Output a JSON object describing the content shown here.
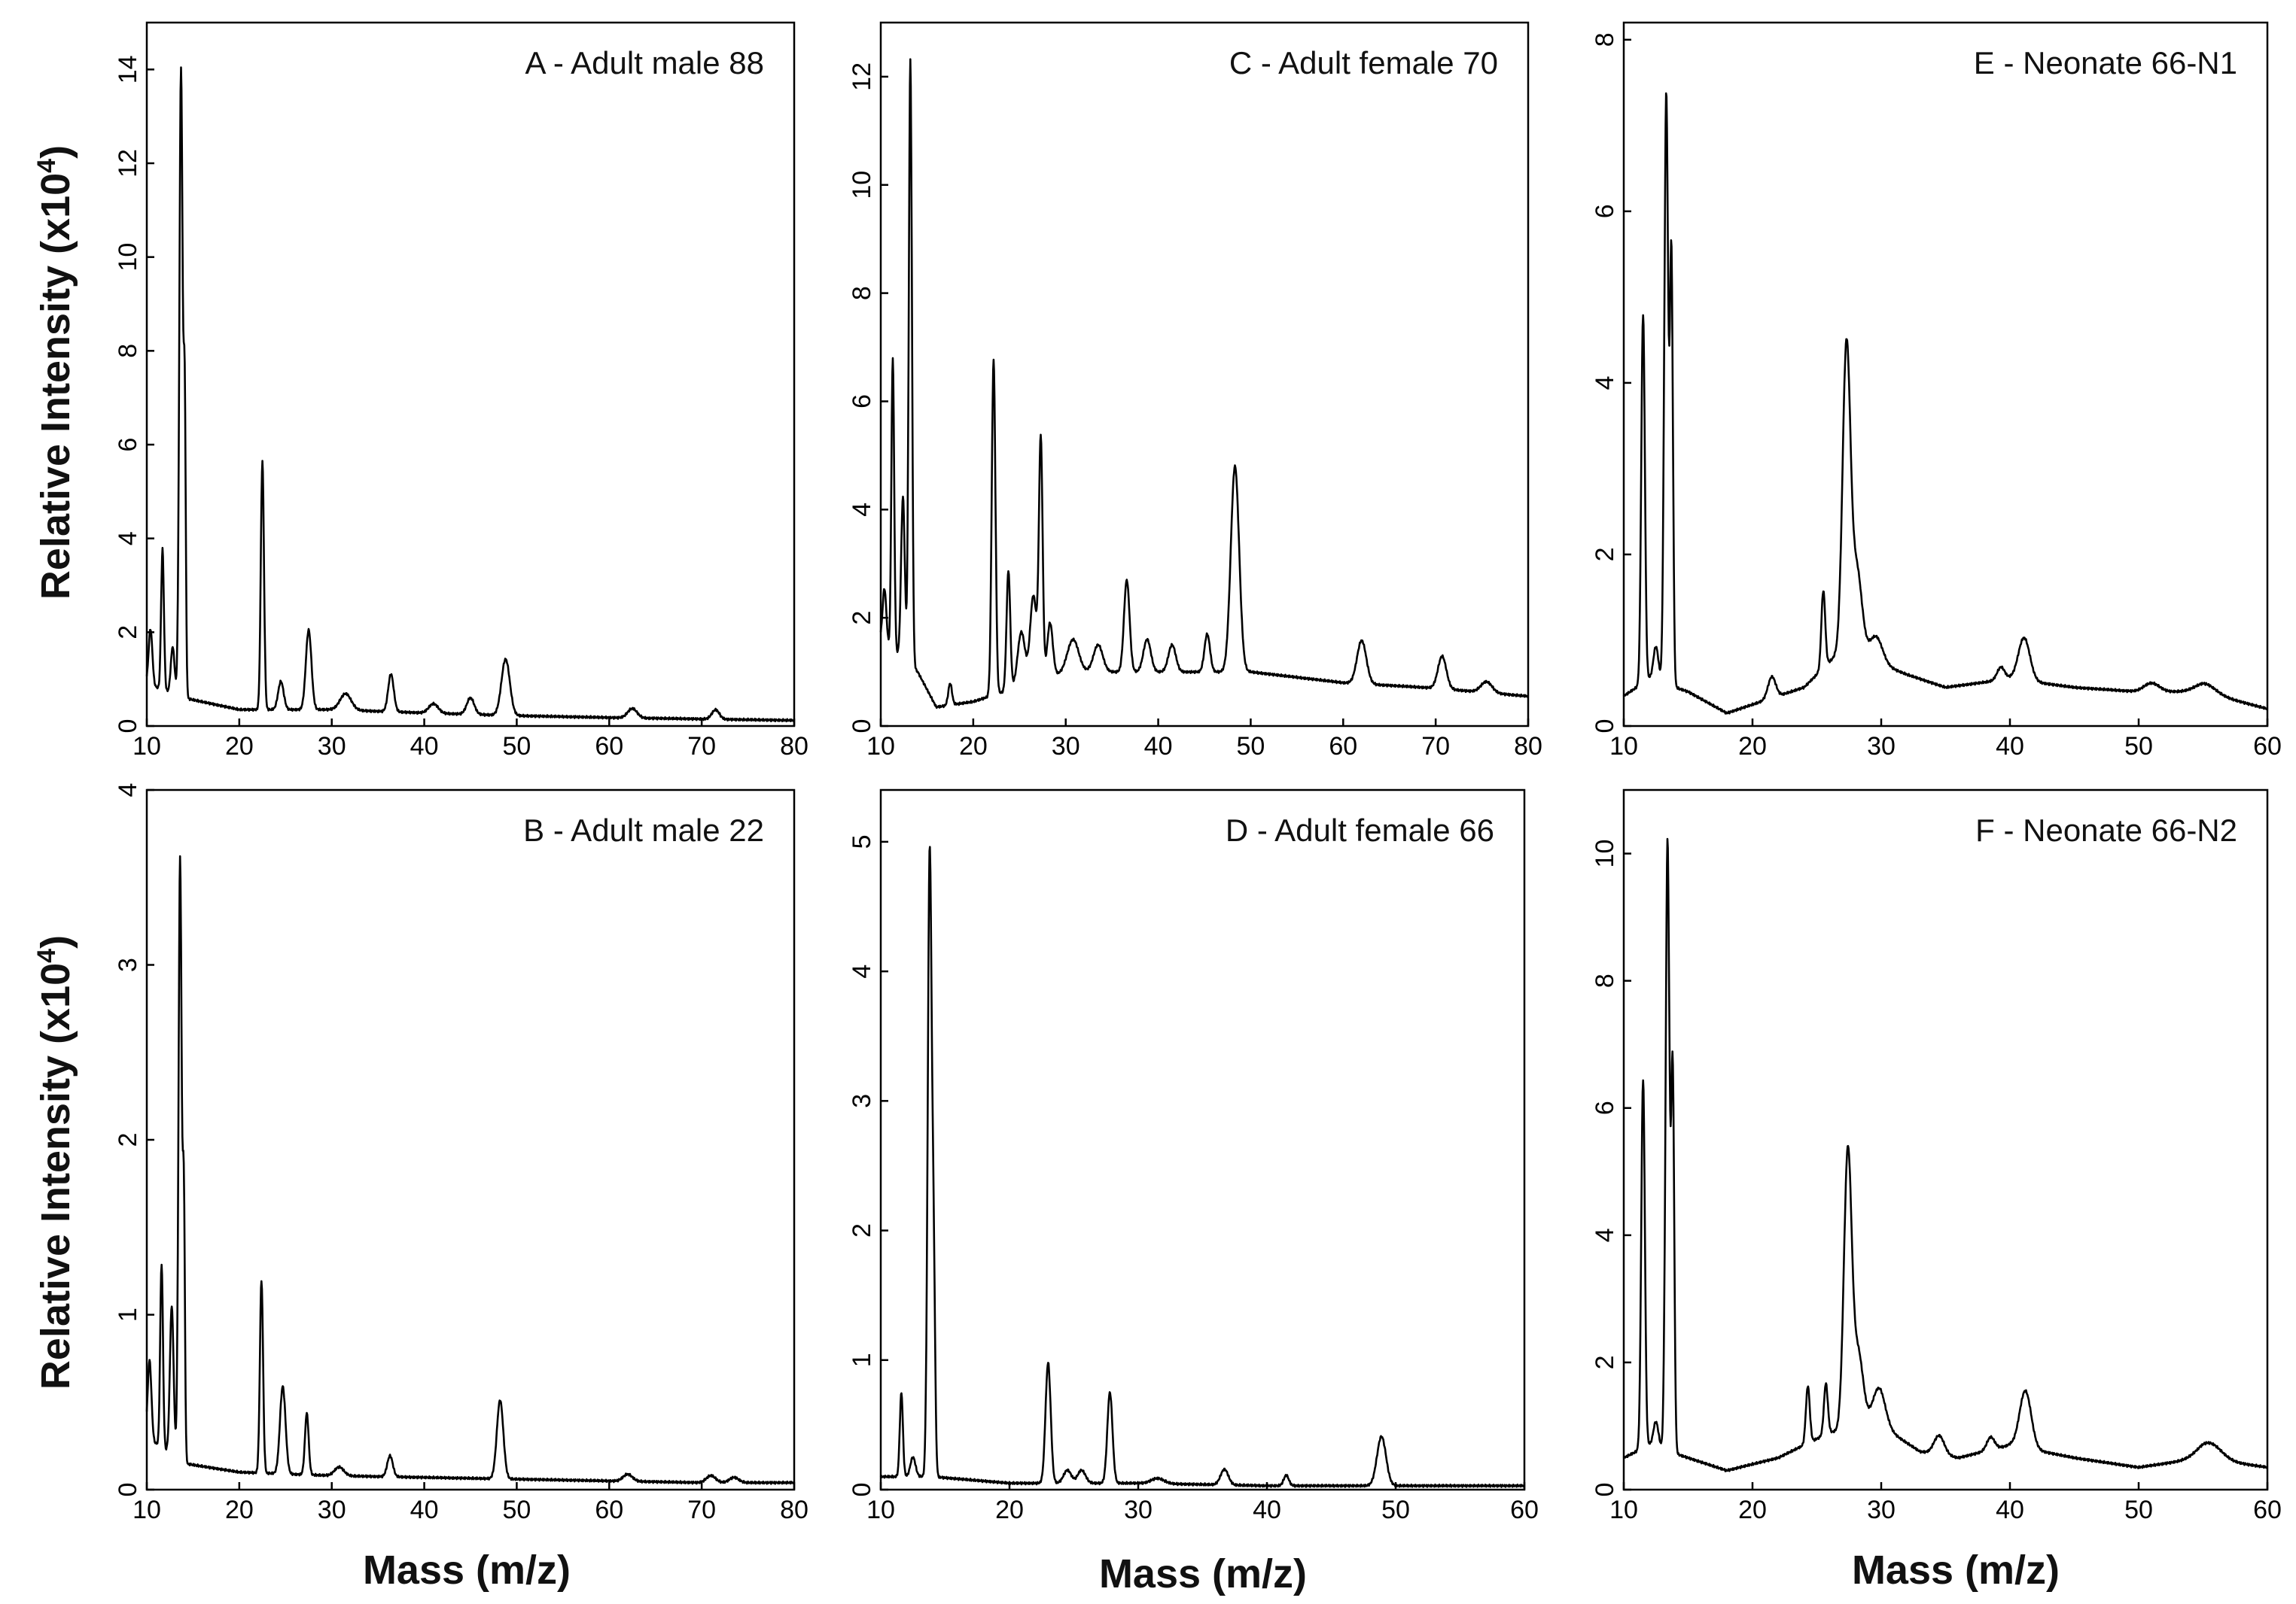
{
  "figure": {
    "xlabel": "Mass (m/z)",
    "ylabel": "Relative Intensity (x10",
    "ylabel_sup": "4",
    "ylabel_close": ")"
  },
  "chart_data": [
    {
      "id": "A",
      "type": "line",
      "title": "A - Adult male 88",
      "xlim": [
        10,
        80
      ],
      "ylim": [
        0,
        15
      ],
      "xticks": [
        10,
        20,
        30,
        40,
        50,
        60,
        70,
        80
      ],
      "yticks": [
        0,
        2,
        4,
        6,
        8,
        10,
        12,
        14
      ],
      "baseline": [
        [
          10,
          0.9
        ],
        [
          14,
          0.6
        ],
        [
          20,
          0.35
        ],
        [
          30,
          0.35
        ],
        [
          40,
          0.28
        ],
        [
          50,
          0.22
        ],
        [
          60,
          0.18
        ],
        [
          70,
          0.15
        ],
        [
          80,
          0.12
        ]
      ],
      "peaks": [
        [
          10.4,
          1.2,
          0.2
        ],
        [
          11.7,
          3.0,
          0.15
        ],
        [
          12.8,
          1.0,
          0.2
        ],
        [
          13.7,
          13.4,
          0.18
        ],
        [
          14.1,
          6.0,
          0.12
        ],
        [
          22.5,
          5.3,
          0.17
        ],
        [
          24.5,
          0.6,
          0.3
        ],
        [
          27.5,
          1.7,
          0.3
        ],
        [
          31.5,
          0.35,
          0.6
        ],
        [
          36.4,
          0.8,
          0.3
        ],
        [
          41,
          0.2,
          0.5
        ],
        [
          45,
          0.35,
          0.4
        ],
        [
          48.8,
          1.2,
          0.45
        ],
        [
          62.5,
          0.2,
          0.5
        ],
        [
          71.5,
          0.2,
          0.4
        ]
      ]
    },
    {
      "id": "C",
      "type": "line",
      "title": "C - Adult female 70",
      "xlim": [
        10,
        80
      ],
      "ylim": [
        0,
        13
      ],
      "xticks": [
        10,
        20,
        30,
        40,
        50,
        60,
        70,
        80
      ],
      "yticks": [
        0,
        2,
        4,
        6,
        8,
        10,
        12
      ],
      "baseline": [
        [
          10,
          1.6
        ],
        [
          14,
          1.0
        ],
        [
          16,
          0.35
        ],
        [
          20,
          0.45
        ],
        [
          30,
          1.0
        ],
        [
          40,
          1.0
        ],
        [
          50,
          1.0
        ],
        [
          60,
          0.8
        ],
        [
          70,
          0.7
        ],
        [
          80,
          0.55
        ]
      ],
      "peaks": [
        [
          10.4,
          1.0,
          0.2
        ],
        [
          11.3,
          5.4,
          0.15
        ],
        [
          12.4,
          3.0,
          0.2
        ],
        [
          13.2,
          11.2,
          0.17
        ],
        [
          17.5,
          0.4,
          0.2
        ],
        [
          22.2,
          6.2,
          0.2
        ],
        [
          23.8,
          2.2,
          0.2
        ],
        [
          25.2,
          1.0,
          0.4
        ],
        [
          26.5,
          1.6,
          0.35
        ],
        [
          27.3,
          4.4,
          0.2
        ],
        [
          28.3,
          1.0,
          0.3
        ],
        [
          30.8,
          0.6,
          0.6
        ],
        [
          33.5,
          0.5,
          0.5
        ],
        [
          36.6,
          1.7,
          0.3
        ],
        [
          38.8,
          0.6,
          0.4
        ],
        [
          41.5,
          0.5,
          0.4
        ],
        [
          45.3,
          0.7,
          0.3
        ],
        [
          48.3,
          3.8,
          0.45
        ],
        [
          62.0,
          0.8,
          0.5
        ],
        [
          70.7,
          0.6,
          0.45
        ],
        [
          75.5,
          0.2,
          0.6
        ]
      ]
    },
    {
      "id": "E",
      "type": "line",
      "title": "E - Neonate 66-N1",
      "xlim": [
        10,
        60
      ],
      "ylim": [
        0,
        8.2
      ],
      "xticks": [
        10,
        20,
        30,
        40,
        50,
        60
      ],
      "yticks": [
        0,
        2,
        4,
        6,
        8
      ],
      "baseline": [
        [
          10,
          0.35
        ],
        [
          12,
          0.55
        ],
        [
          15,
          0.4
        ],
        [
          18,
          0.15
        ],
        [
          20,
          0.25
        ],
        [
          24,
          0.45
        ],
        [
          27,
          0.9
        ],
        [
          32,
          0.6
        ],
        [
          35,
          0.45
        ],
        [
          40,
          0.55
        ],
        [
          45,
          0.45
        ],
        [
          50,
          0.4
        ],
        [
          55,
          0.4
        ],
        [
          60,
          0.2
        ]
      ],
      "peaks": [
        [
          11.5,
          4.3,
          0.14
        ],
        [
          12.5,
          0.4,
          0.2
        ],
        [
          13.3,
          6.9,
          0.15
        ],
        [
          13.7,
          5.0,
          0.12
        ],
        [
          21.5,
          0.25,
          0.3
        ],
        [
          25.5,
          0.9,
          0.15
        ],
        [
          27.3,
          3.5,
          0.3
        ],
        [
          28.1,
          1.0,
          0.4
        ],
        [
          29.6,
          0.3,
          0.5
        ],
        [
          39.3,
          0.15,
          0.3
        ],
        [
          41.1,
          0.5,
          0.45
        ],
        [
          51,
          0.1,
          0.6
        ],
        [
          55.2,
          0.1,
          0.8
        ]
      ]
    },
    {
      "id": "B",
      "type": "line",
      "title": "B - Adult male 22",
      "xlim": [
        10,
        80
      ],
      "ylim": [
        0,
        4
      ],
      "xticks": [
        10,
        20,
        30,
        40,
        50,
        60,
        70,
        80
      ],
      "yticks": [
        0,
        1,
        2,
        3,
        4
      ],
      "baseline": [
        [
          10,
          0.3
        ],
        [
          14,
          0.15
        ],
        [
          20,
          0.1
        ],
        [
          30,
          0.08
        ],
        [
          40,
          0.07
        ],
        [
          50,
          0.06
        ],
        [
          60,
          0.05
        ],
        [
          70,
          0.04
        ],
        [
          80,
          0.04
        ]
      ],
      "peaks": [
        [
          10.3,
          0.45,
          0.2
        ],
        [
          11.6,
          1.05,
          0.15
        ],
        [
          12.7,
          0.85,
          0.2
        ],
        [
          13.6,
          3.45,
          0.17
        ],
        [
          14.0,
          1.5,
          0.12
        ],
        [
          22.4,
          1.1,
          0.17
        ],
        [
          24.7,
          0.5,
          0.3
        ],
        [
          27.3,
          0.35,
          0.2
        ],
        [
          30.8,
          0.05,
          0.5
        ],
        [
          36.3,
          0.12,
          0.3
        ],
        [
          48.2,
          0.45,
          0.35
        ],
        [
          62,
          0.04,
          0.5
        ],
        [
          71,
          0.04,
          0.5
        ],
        [
          73.5,
          0.03,
          0.5
        ]
      ]
    },
    {
      "id": "D",
      "type": "line",
      "title": "D - Adult female 66",
      "xlim": [
        10,
        60
      ],
      "ylim": [
        0,
        5.4
      ],
      "xticks": [
        10,
        20,
        30,
        40,
        50,
        60
      ],
      "yticks": [
        0,
        1,
        2,
        3,
        4,
        5
      ],
      "baseline": [
        [
          10,
          0.1
        ],
        [
          14,
          0.1
        ],
        [
          20,
          0.05
        ],
        [
          30,
          0.05
        ],
        [
          40,
          0.03
        ],
        [
          50,
          0.03
        ],
        [
          60,
          0.03
        ]
      ],
      "peaks": [
        [
          11.6,
          0.65,
          0.12
        ],
        [
          12.5,
          0.15,
          0.2
        ],
        [
          13.8,
          4.8,
          0.15
        ],
        [
          14.1,
          1.6,
          0.12
        ],
        [
          23.0,
          0.93,
          0.2
        ],
        [
          24.5,
          0.1,
          0.3
        ],
        [
          25.6,
          0.1,
          0.3
        ],
        [
          27.8,
          0.7,
          0.2
        ],
        [
          31.5,
          0.04,
          0.5
        ],
        [
          36.7,
          0.12,
          0.3
        ],
        [
          41.5,
          0.08,
          0.2
        ],
        [
          48.9,
          0.38,
          0.35
        ]
      ]
    },
    {
      "id": "F",
      "type": "line",
      "title": "F - Neonate 66-N2",
      "xlim": [
        10,
        60
      ],
      "ylim": [
        0,
        11
      ],
      "xticks": [
        10,
        20,
        30,
        40,
        50,
        60
      ],
      "yticks": [
        0,
        2,
        4,
        6,
        8,
        10
      ],
      "baseline": [
        [
          10,
          0.5
        ],
        [
          12,
          0.7
        ],
        [
          15,
          0.5
        ],
        [
          18,
          0.3
        ],
        [
          22,
          0.5
        ],
        [
          26,
          0.9
        ],
        [
          30,
          1.0
        ],
        [
          33,
          0.6
        ],
        [
          36,
          0.5
        ],
        [
          40,
          0.7
        ],
        [
          45,
          0.5
        ],
        [
          50,
          0.35
        ],
        [
          55,
          0.5
        ],
        [
          60,
          0.35
        ]
      ],
      "peaks": [
        [
          11.5,
          5.8,
          0.14
        ],
        [
          12.5,
          0.4,
          0.2
        ],
        [
          13.4,
          9.6,
          0.15
        ],
        [
          13.8,
          6.0,
          0.12
        ],
        [
          24.3,
          0.9,
          0.15
        ],
        [
          25.7,
          0.8,
          0.15
        ],
        [
          27.4,
          4.3,
          0.3
        ],
        [
          28.2,
          1.2,
          0.4
        ],
        [
          29.8,
          0.6,
          0.5
        ],
        [
          34.5,
          0.3,
          0.4
        ],
        [
          38.5,
          0.2,
          0.3
        ],
        [
          41.2,
          0.9,
          0.45
        ],
        [
          55.5,
          0.25,
          0.9
        ]
      ]
    }
  ]
}
